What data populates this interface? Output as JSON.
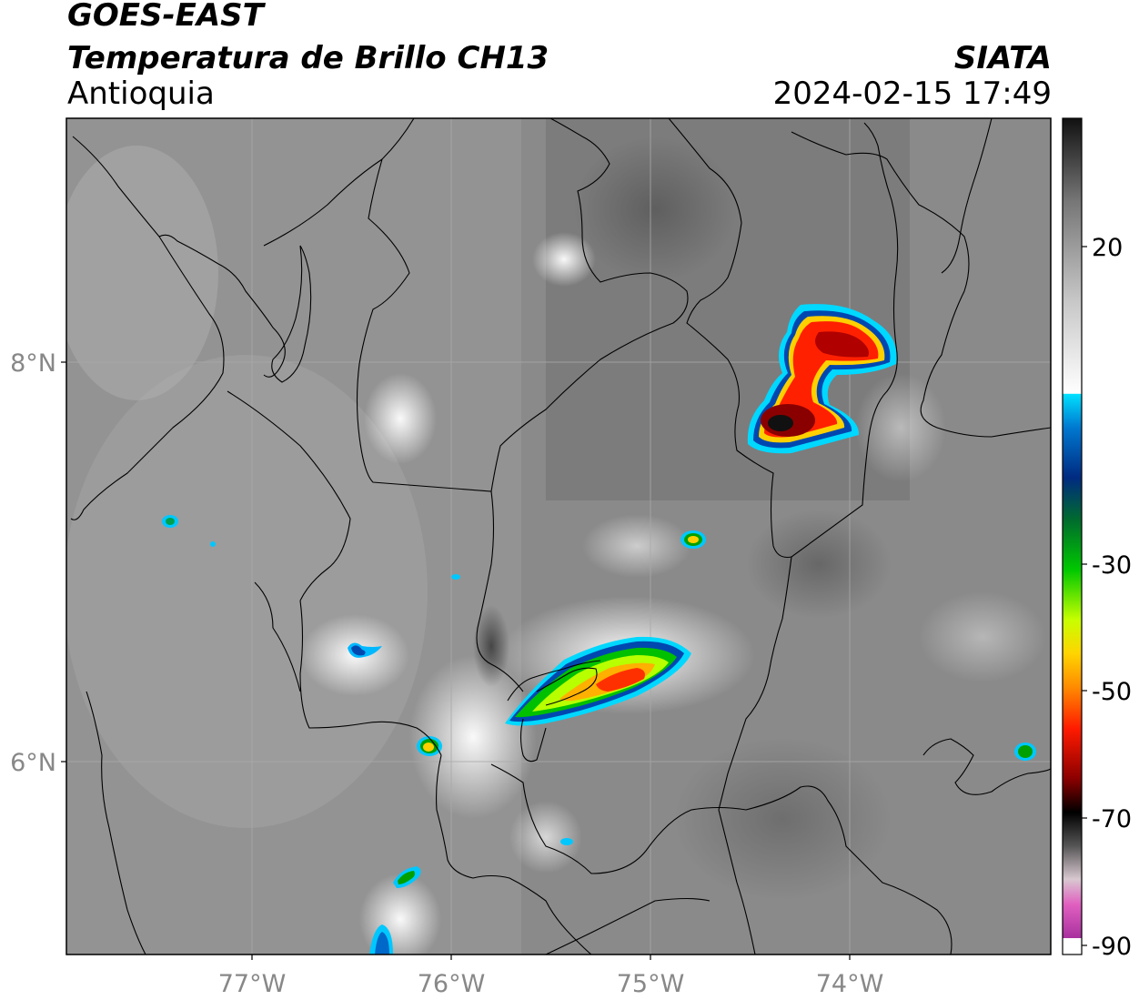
{
  "header": {
    "satellite": "GOES-EAST",
    "product": "Temperatura de Brillo CH13",
    "region": "Antioquia",
    "organization": "SIATA",
    "datetime": "2024-02-15 17:49"
  },
  "map": {
    "lon_labels": [
      "77°W",
      "76°W",
      "75°W",
      "74°W"
    ],
    "lat_labels": [
      "8°N",
      "6°N"
    ],
    "background_color": "#8a8a8a",
    "grid_color": "#a9a9a9",
    "border_color": "#000000"
  },
  "colorbar": {
    "tick_labels": [
      "20",
      "-30",
      "-50",
      "-70",
      "-90"
    ]
  }
}
